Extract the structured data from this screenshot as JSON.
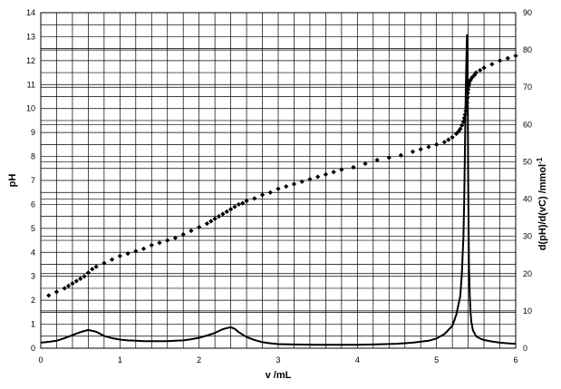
{
  "chart_data": {
    "type": "scatter",
    "xlabel": "v /mL",
    "ylabel": "pH",
    "y2label": "d(pH)/d(vC) /mmol",
    "y2label_sup": "-1",
    "xlim": [
      0,
      6
    ],
    "ylim": [
      0,
      14
    ],
    "y2lim": [
      0,
      90
    ],
    "x_ticks": [
      "0",
      "1",
      "2",
      "3",
      "4",
      "5",
      "6"
    ],
    "y_ticks": [
      "0",
      "1",
      "2",
      "3",
      "4",
      "5",
      "6",
      "7",
      "8",
      "9",
      "10",
      "11",
      "12",
      "13",
      "14"
    ],
    "y2_ticks": [
      "0",
      "10",
      "20",
      "30",
      "40",
      "50",
      "60",
      "70",
      "80",
      "90"
    ],
    "grid": true,
    "legend": "none",
    "series": [
      {
        "axis": "left",
        "style": "markers",
        "color": "#000000",
        "x": [
          0.1,
          0.2,
          0.3,
          0.35,
          0.4,
          0.45,
          0.5,
          0.55,
          0.6,
          0.65,
          0.7,
          0.8,
          0.9,
          1.0,
          1.1,
          1.2,
          1.3,
          1.4,
          1.5,
          1.6,
          1.7,
          1.8,
          1.9,
          2.0,
          2.1,
          2.15,
          2.2,
          2.25,
          2.3,
          2.35,
          2.4,
          2.45,
          2.5,
          2.55,
          2.6,
          2.7,
          2.8,
          2.9,
          3.0,
          3.1,
          3.2,
          3.3,
          3.4,
          3.5,
          3.6,
          3.7,
          3.8,
          3.95,
          4.1,
          4.25,
          4.4,
          4.55,
          4.7,
          4.8,
          4.9,
          5.0,
          5.1,
          5.15,
          5.2,
          5.25,
          5.28,
          5.3,
          5.32,
          5.34,
          5.35,
          5.36,
          5.37,
          5.38,
          5.385,
          5.39,
          5.395,
          5.4,
          5.405,
          5.41,
          5.42,
          5.43,
          5.45,
          5.48,
          5.5,
          5.55,
          5.6,
          5.7,
          5.8,
          5.9,
          6.0
        ],
        "y": [
          2.2,
          2.35,
          2.5,
          2.6,
          2.7,
          2.8,
          2.9,
          3.0,
          3.15,
          3.3,
          3.4,
          3.55,
          3.7,
          3.85,
          3.95,
          4.05,
          4.15,
          4.3,
          4.4,
          4.5,
          4.6,
          4.75,
          4.9,
          5.05,
          5.2,
          5.3,
          5.4,
          5.5,
          5.6,
          5.7,
          5.8,
          5.9,
          6.0,
          6.05,
          6.15,
          6.25,
          6.4,
          6.5,
          6.65,
          6.75,
          6.85,
          6.95,
          7.05,
          7.15,
          7.25,
          7.35,
          7.45,
          7.55,
          7.7,
          7.85,
          7.95,
          8.05,
          8.2,
          8.3,
          8.4,
          8.5,
          8.6,
          8.7,
          8.8,
          8.95,
          9.05,
          9.15,
          9.3,
          9.45,
          9.6,
          9.75,
          9.9,
          10.05,
          10.25,
          10.45,
          10.65,
          10.8,
          10.95,
          11.05,
          11.15,
          11.2,
          11.3,
          11.4,
          11.5,
          11.6,
          11.7,
          11.85,
          12.0,
          12.1,
          12.2
        ]
      },
      {
        "axis": "right",
        "style": "line",
        "color": "#000000",
        "x": [
          0,
          0.1,
          0.2,
          0.3,
          0.4,
          0.5,
          0.6,
          0.7,
          0.8,
          0.9,
          1.0,
          1.1,
          1.2,
          1.3,
          1.4,
          1.5,
          1.6,
          1.7,
          1.8,
          1.9,
          2.0,
          2.1,
          2.2,
          2.3,
          2.35,
          2.4,
          2.45,
          2.5,
          2.6,
          2.7,
          2.8,
          2.9,
          3.0,
          3.2,
          3.5,
          3.8,
          4.0,
          4.2,
          4.5,
          4.7,
          4.9,
          5.0,
          5.1,
          5.2,
          5.25,
          5.3,
          5.32,
          5.34,
          5.35,
          5.36,
          5.37,
          5.38,
          5.385,
          5.39,
          5.395,
          5.4,
          5.405,
          5.41,
          5.42,
          5.43,
          5.44,
          5.46,
          5.5,
          5.55,
          5.6,
          5.7,
          5.8,
          5.9,
          6.0
        ],
        "y": [
          1.5,
          1.7,
          2.0,
          2.7,
          3.5,
          4.3,
          4.9,
          4.4,
          3.3,
          2.7,
          2.3,
          2.1,
          2.0,
          1.9,
          1.9,
          1.9,
          1.9,
          2.0,
          2.1,
          2.4,
          2.8,
          3.4,
          4.1,
          5.1,
          5.4,
          5.6,
          5.2,
          4.3,
          3.0,
          2.2,
          1.6,
          1.3,
          1.1,
          1.0,
          0.9,
          0.9,
          0.9,
          1.0,
          1.2,
          1.5,
          2.0,
          2.6,
          3.8,
          6.0,
          9.0,
          14.0,
          20.0,
          30.0,
          40.0,
          55.0,
          70.0,
          80.0,
          84.0,
          80.0,
          65.0,
          45.0,
          32.0,
          22.0,
          14.0,
          9.5,
          7.0,
          4.8,
          3.2,
          2.6,
          2.2,
          1.8,
          1.5,
          1.3,
          1.2
        ]
      }
    ]
  }
}
